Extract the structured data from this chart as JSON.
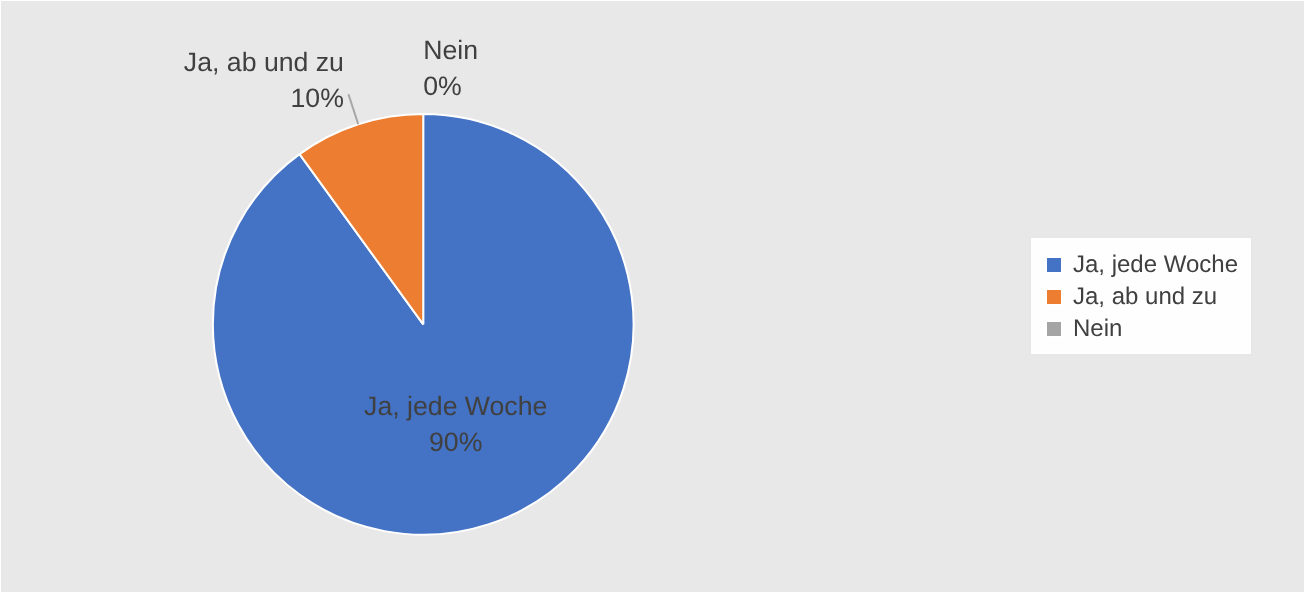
{
  "chart_data": {
    "type": "pie",
    "categories": [
      "Ja, jede Woche",
      "Ja, ab und zu",
      "Nein"
    ],
    "values": [
      90,
      10,
      0
    ],
    "value_labels": [
      "90%",
      "10%",
      "0%"
    ],
    "colors": [
      "#4472c4",
      "#ed7d31",
      "#a5a5a5"
    ],
    "legend": "right"
  }
}
